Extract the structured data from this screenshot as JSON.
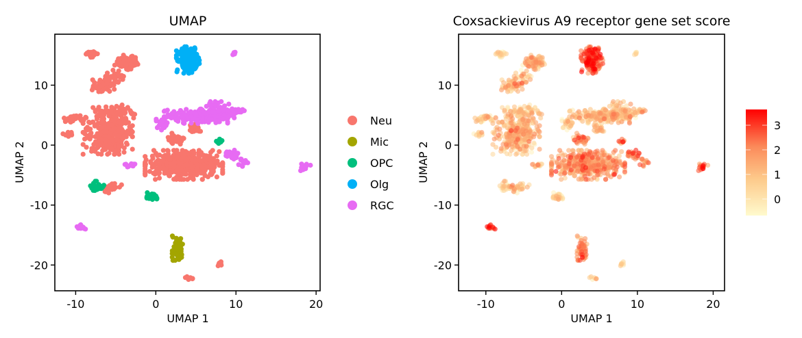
{
  "chart_data": [
    {
      "type": "scatter",
      "title": "UMAP",
      "xlabel": "UMAP 1",
      "ylabel": "UMAP 2",
      "xlim": [
        -12.6,
        20.5
      ],
      "ylim": [
        -24.3,
        18.5
      ],
      "xticks": [
        -10,
        0,
        10,
        20
      ],
      "yticks": [
        -20,
        -10,
        0,
        10
      ],
      "xtick_labels": [
        "-10",
        "0",
        "10",
        "20"
      ],
      "ytick_labels": [
        "-20",
        "-10",
        "0",
        "10"
      ],
      "grid": false,
      "legend_placement": "right",
      "legend": [
        {
          "label": "Neu",
          "color": "#F8766D"
        },
        {
          "label": "Mic",
          "color": "#A3A500"
        },
        {
          "label": "OPC",
          "color": "#00BF7D"
        },
        {
          "label": "Olg",
          "color": "#00B0F6"
        },
        {
          "label": "RGC",
          "color": "#E76BF3"
        }
      ]
    },
    {
      "type": "scatter",
      "title": "Coxsackievirus A9 receptor gene set score",
      "xlabel": "UMAP 1",
      "ylabel": "UMAP 2",
      "xlim": [
        -13.6,
        21.5
      ],
      "ylim": [
        -24.3,
        18.5
      ],
      "xticks": [
        -10,
        0,
        10,
        20
      ],
      "yticks": [
        -20,
        -10,
        0,
        10
      ],
      "xtick_labels": [
        "-10",
        "0",
        "10",
        "20"
      ],
      "ytick_labels": [
        "-20",
        "-10",
        "0",
        "10"
      ],
      "grid": false,
      "colorbar": {
        "min": -0.67,
        "max": 3.64,
        "ticks": [
          0,
          1,
          2,
          3
        ],
        "tick_labels": [
          "0",
          "1",
          "2",
          "3"
        ],
        "low_color": "#FFFACD",
        "high_color": "#FF0000",
        "placement": "right"
      }
    }
  ],
  "clusters": [
    {
      "type": "Neu",
      "x": -8.0,
      "y": 15.2,
      "sx": 0.35,
      "sy": 0.25,
      "n": 25,
      "score": 0.3
    },
    {
      "type": "Neu",
      "x": -3.6,
      "y": 13.8,
      "sx": 0.7,
      "sy": 0.55,
      "n": 90,
      "score": 0.9
    },
    {
      "type": "Neu",
      "x": -6.4,
      "y": 9.9,
      "sx": 0.7,
      "sy": 0.45,
      "n": 70,
      "score": 0.8
    },
    {
      "type": "Neu",
      "x": -5.0,
      "y": 11.4,
      "sx": 0.6,
      "sy": 0.5,
      "n": 25,
      "score": 0.6
    },
    {
      "type": "Neu",
      "x": -6.0,
      "y": 2.0,
      "sx": 1.4,
      "sy": 1.6,
      "n": 320,
      "score": 0.9
    },
    {
      "type": "Neu",
      "x": -5.2,
      "y": 5.6,
      "sx": 1.2,
      "sy": 0.5,
      "n": 70,
      "score": 0.6
    },
    {
      "type": "Neu",
      "x": -10.2,
      "y": 4.5,
      "sx": 0.7,
      "sy": 0.3,
      "n": 35,
      "score": 0.5
    },
    {
      "type": "Neu",
      "x": -11.0,
      "y": 1.8,
      "sx": 0.3,
      "sy": 0.2,
      "n": 12,
      "score": 0.4
    },
    {
      "type": "Neu",
      "x": -5.6,
      "y": -7.1,
      "sx": 0.6,
      "sy": 0.4,
      "n": 35,
      "score": 0.3
    },
    {
      "type": "Neu",
      "x": 3.5,
      "y": -3.3,
      "sx": 2.2,
      "sy": 1.1,
      "n": 420,
      "score": 1.5
    },
    {
      "type": "Neu",
      "x": 2.6,
      "y": 1.0,
      "sx": 0.6,
      "sy": 0.5,
      "n": 30,
      "score": 1.8
    },
    {
      "type": "Neu",
      "x": 4.8,
      "y": 2.8,
      "sx": 0.6,
      "sy": 0.5,
      "n": 20,
      "score": 1.0
    },
    {
      "type": "Neu",
      "x": 8.0,
      "y": -19.8,
      "sx": 0.2,
      "sy": 0.2,
      "n": 8,
      "score": 0.2
    },
    {
      "type": "Neu",
      "x": 4.3,
      "y": -22.2,
      "sx": 0.3,
      "sy": 0.2,
      "n": 8,
      "score": 0.6
    },
    {
      "type": "Mic",
      "x": 2.7,
      "y": -17.5,
      "sx": 0.3,
      "sy": 1.1,
      "n": 60,
      "score": 2.0
    },
    {
      "type": "OPC",
      "x": -7.3,
      "y": -6.8,
      "sx": 0.5,
      "sy": 0.35,
      "n": 30,
      "score": 0.4
    },
    {
      "type": "OPC",
      "x": -0.5,
      "y": -8.7,
      "sx": 0.4,
      "sy": 0.35,
      "n": 30,
      "score": 0.3
    },
    {
      "type": "OPC",
      "x": 8.0,
      "y": 0.6,
      "sx": 0.2,
      "sy": 0.3,
      "n": 10,
      "score": 2.2
    },
    {
      "type": "Olg",
      "x": 4.0,
      "y": 14.2,
      "sx": 0.65,
      "sy": 1.0,
      "n": 160,
      "score": 2.6
    },
    {
      "type": "RGC",
      "x": 5.0,
      "y": 4.8,
      "sx": 1.8,
      "sy": 0.55,
      "n": 170,
      "score": 0.8
    },
    {
      "type": "RGC",
      "x": 7.8,
      "y": 5.5,
      "sx": 0.9,
      "sy": 0.8,
      "n": 90,
      "score": 1.0
    },
    {
      "type": "RGC",
      "x": 0.8,
      "y": 3.5,
      "sx": 0.4,
      "sy": 0.5,
      "n": 30,
      "score": 0.2
    },
    {
      "type": "RGC",
      "x": -3.2,
      "y": -3.2,
      "sx": 0.4,
      "sy": 0.2,
      "n": 15,
      "score": 0.5
    },
    {
      "type": "RGC",
      "x": -9.3,
      "y": -13.7,
      "sx": 0.3,
      "sy": 0.2,
      "n": 12,
      "score": 3.0
    },
    {
      "type": "RGC",
      "x": 9.8,
      "y": 15.3,
      "sx": 0.15,
      "sy": 0.15,
      "n": 6,
      "score": 0.1
    },
    {
      "type": "RGC",
      "x": 10.4,
      "y": 5.8,
      "sx": 0.4,
      "sy": 0.2,
      "n": 15,
      "score": 1.0
    },
    {
      "type": "RGC",
      "x": 9.5,
      "y": -1.8,
      "sx": 0.5,
      "sy": 0.5,
      "n": 25,
      "score": 2.0
    },
    {
      "type": "RGC",
      "x": 11.0,
      "y": -3.0,
      "sx": 0.3,
      "sy": 0.3,
      "n": 12,
      "score": 1.8
    },
    {
      "type": "RGC",
      "x": 18.6,
      "y": -3.6,
      "sx": 0.4,
      "sy": 0.3,
      "n": 15,
      "score": 2.5
    }
  ]
}
